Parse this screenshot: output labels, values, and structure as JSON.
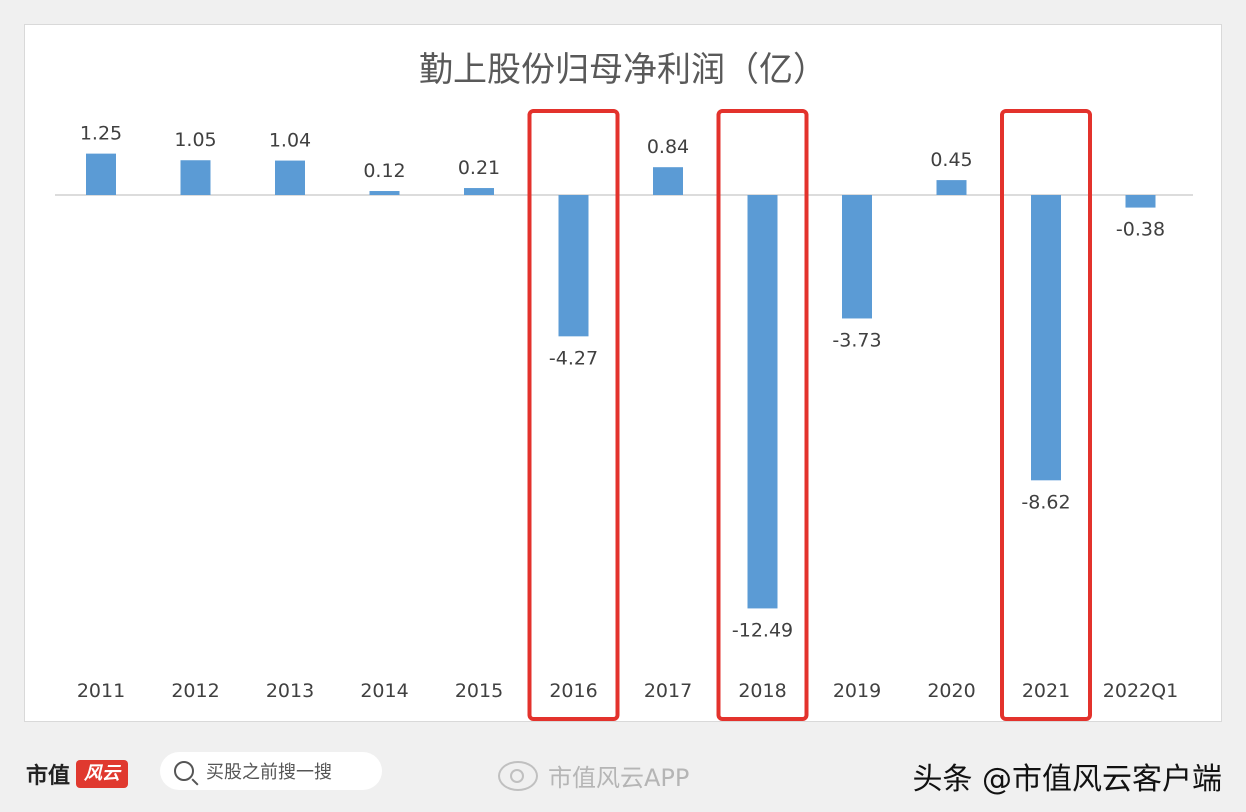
{
  "chart_data": {
    "type": "bar",
    "title": "勤上股份归母净利润（亿）",
    "categories": [
      "2011",
      "2012",
      "2013",
      "2014",
      "2015",
      "2016",
      "2017",
      "2018",
      "2019",
      "2020",
      "2021",
      "2022Q1"
    ],
    "series": [
      {
        "values": [
          1.25,
          1.05,
          1.04,
          0.12,
          0.21,
          -4.27,
          0.84,
          -12.49,
          -3.73,
          0.45,
          -8.62,
          -0.38
        ]
      }
    ],
    "data_labels": [
      "1.25",
      "1.05",
      "1.04",
      "0.12",
      "0.21",
      "-4.27",
      "0.84",
      "-12.49",
      "-3.73",
      "0.45",
      "-8.62",
      "-0.38"
    ],
    "highlighted_categories": [
      "2016",
      "2018",
      "2021"
    ],
    "grid": false,
    "colors": {
      "bar": "#5b9bd5",
      "highlight": "#e3322c",
      "axis": "#d0d0d0"
    }
  },
  "footer": {
    "brand": "市值",
    "brand_badge": "风云",
    "search_placeholder": "买股之前搜一搜",
    "weibo_text": "市值风云APP",
    "toutiao_text": "头条 @市值风云客户端"
  }
}
